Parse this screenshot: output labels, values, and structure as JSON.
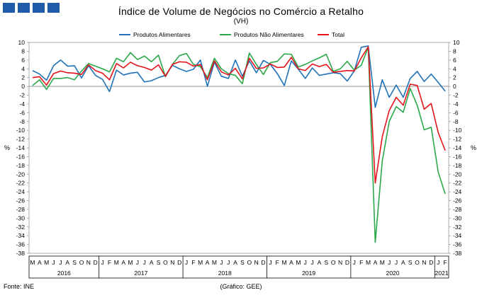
{
  "header": {
    "title": "Índice de Volume  de Negócios no Comércio a Retalho",
    "subtitle": "(VH)"
  },
  "footer": {
    "source": "Fonte: INE",
    "credit": "(Gráfico: GEE)"
  },
  "colors": {
    "brand": "#1f5ba8",
    "food": "#1f72b8",
    "nonfood": "#2aa84a",
    "total": "#e3141b"
  },
  "chart_data": {
    "type": "line",
    "ylabel_left": "%",
    "ylabel_right": "%",
    "ylim": [
      -38,
      10
    ],
    "yticks": [
      10,
      8,
      6,
      4,
      2,
      0,
      -2,
      -4,
      -6,
      -8,
      -10,
      -12,
      -14,
      -16,
      -18,
      -20,
      -22,
      -24,
      -26,
      -28,
      -30,
      -32,
      -34,
      -36,
      -38
    ],
    "legend_position": "top",
    "month_labels": [
      "M",
      "A",
      "M",
      "J",
      "J",
      "A",
      "S",
      "O",
      "N",
      "D",
      "J",
      "F",
      "M",
      "A",
      "M",
      "J",
      "J",
      "A",
      "S",
      "O",
      "N",
      "D",
      "J",
      "F",
      "M",
      "A",
      "M",
      "J",
      "J",
      "A",
      "S",
      "O",
      "N",
      "D",
      "J",
      "F",
      "M",
      "A",
      "M",
      "J",
      "J",
      "A",
      "S",
      "O",
      "N",
      "D",
      "J",
      "F",
      "M",
      "A",
      "M",
      "J",
      "J",
      "A",
      "S",
      "O",
      "N",
      "D",
      "J",
      "F"
    ],
    "year_groups": [
      {
        "label": "2016",
        "count": 10
      },
      {
        "label": "2017",
        "count": 12
      },
      {
        "label": "2018",
        "count": 12
      },
      {
        "label": "2019",
        "count": 12
      },
      {
        "label": "2020",
        "count": 12
      },
      {
        "label": "2021",
        "count": 2
      }
    ],
    "series": [
      {
        "name": "Produtos Alimentares",
        "color": "#1f72b8",
        "values": [
          3.6,
          2.8,
          1.4,
          4.7,
          6.0,
          4.6,
          4.7,
          1.9,
          4.7,
          2.5,
          1.6,
          -1.2,
          3.7,
          2.6,
          3.0,
          3.2,
          1.0,
          1.3,
          2.0,
          2.5,
          4.8,
          4.0,
          3.4,
          3.9,
          6.0,
          0.0,
          5.5,
          2.3,
          1.8,
          6.0,
          2.3,
          5.8,
          3.1,
          5.9,
          5.0,
          2.9,
          0.2,
          5.8,
          3.9,
          1.8,
          4.2,
          2.5,
          2.8,
          3.1,
          2.9,
          1.2,
          3.5,
          8.9,
          9.2,
          -4.8,
          1.5,
          -2.5,
          0.3,
          -2.5,
          1.8,
          3.4,
          1.1,
          2.8,
          0.9,
          -1.1
        ]
      },
      {
        "name": "Produtos Não Alimentares",
        "color": "#2aa84a",
        "values": [
          0.2,
          1.5,
          -0.7,
          1.8,
          1.8,
          2.0,
          1.5,
          3.5,
          5.2,
          4.6,
          4.0,
          3.3,
          6.4,
          5.6,
          7.7,
          6.1,
          6.9,
          5.6,
          7.1,
          2.2,
          5.0,
          7.0,
          7.5,
          5.0,
          4.5,
          2.0,
          6.4,
          4.0,
          2.9,
          2.5,
          0.6,
          7.6,
          5.0,
          2.7,
          5.4,
          5.7,
          7.4,
          7.3,
          4.4,
          5.0,
          5.8,
          6.5,
          7.3,
          3.4,
          4.0,
          5.7,
          3.7,
          4.8,
          8.9,
          -35.5,
          -17.0,
          -8.0,
          -4.6,
          -5.9,
          -0.5,
          -4.3,
          -9.9,
          -9.3,
          -19.5,
          -24.5
        ]
      },
      {
        "name": "Total",
        "color": "#e3141b",
        "values": [
          2.0,
          2.2,
          0.3,
          2.9,
          3.5,
          3.1,
          3.0,
          2.7,
          4.9,
          3.6,
          3.0,
          1.5,
          5.2,
          4.2,
          5.5,
          4.7,
          4.3,
          3.7,
          4.9,
          2.3,
          5.0,
          5.6,
          5.5,
          4.6,
          5.0,
          1.5,
          5.8,
          3.3,
          2.6,
          4.1,
          1.7,
          6.4,
          4.1,
          4.2,
          5.1,
          4.3,
          4.4,
          6.6,
          4.0,
          3.6,
          5.1,
          4.5,
          5.0,
          3.2,
          3.4,
          3.6,
          3.5,
          6.5,
          9.0,
          -22.0,
          -11.5,
          -5.5,
          -2.5,
          -4.3,
          0.5,
          0.2,
          -5.2,
          -3.9,
          -10.5,
          -14.6
        ]
      }
    ]
  }
}
